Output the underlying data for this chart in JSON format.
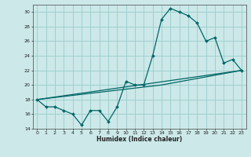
{
  "xlabel": "Humidex (Indice chaleur)",
  "ylabel": "",
  "bg_color": "#cce8e8",
  "grid_color": "#99cccc",
  "line_color": "#006666",
  "xlim_min": -0.5,
  "xlim_max": 23.5,
  "ylim_min": 14,
  "ylim_max": 31,
  "yticks": [
    14,
    16,
    18,
    20,
    22,
    24,
    26,
    28,
    30
  ],
  "xticks": [
    0,
    1,
    2,
    3,
    4,
    5,
    6,
    7,
    8,
    9,
    10,
    11,
    12,
    13,
    14,
    15,
    16,
    17,
    18,
    19,
    20,
    21,
    22,
    23
  ],
  "series1_x": [
    0,
    1,
    2,
    3,
    4,
    5,
    6,
    7,
    8,
    9,
    10,
    11,
    12,
    13,
    14,
    15,
    16,
    17,
    18,
    19,
    20,
    21,
    22,
    23
  ],
  "series1_y": [
    18.0,
    17.0,
    17.0,
    16.5,
    16.0,
    14.5,
    16.5,
    16.5,
    15.0,
    17.0,
    20.5,
    20.0,
    20.0,
    24.0,
    29.0,
    30.5,
    30.0,
    29.5,
    28.5,
    26.0,
    26.5,
    23.0,
    23.5,
    22.0
  ],
  "series2_x": [
    0,
    23
  ],
  "series2_y": [
    18.0,
    22.0
  ],
  "series3_x": [
    0,
    14,
    23
  ],
  "series3_y": [
    18.0,
    20.0,
    22.0
  ]
}
